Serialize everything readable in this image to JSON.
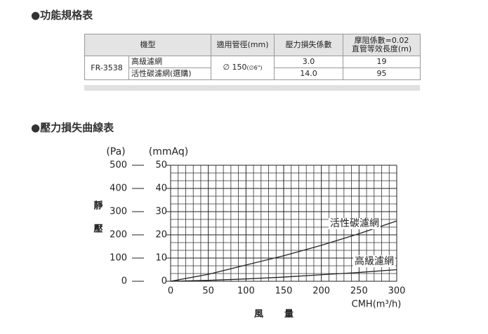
{
  "section1_title": "●功能規格表",
  "table": {
    "header": [
      "機型",
      "適用管徑(mm)",
      "壓力損失係數",
      [
        "摩阻係數=0.02",
        "直管等效長度(m)"
      ]
    ],
    "model": "FR-3538",
    "diameter": "∅ 150",
    "diameter_note": "(∅6\")",
    "rows": [
      {
        "filter": "高級濾網",
        "loss_coefficient": "3.0",
        "equivalent_length": 19
      },
      {
        "filter": "活性碳濾網(選購)",
        "loss_coefficient": "14.0",
        "equivalent_length": 95
      }
    ]
  },
  "section2_title": "●壓力損失曲線表",
  "chart_data": {
    "type": "line",
    "y_label": "靜壓",
    "x_label": "風量",
    "x_unit": "CMH(m³/h)",
    "y_unit": "(mmAq)",
    "y2_unit": "(Pa)",
    "x": [
      0,
      50,
      100,
      150,
      200,
      250,
      300
    ],
    "series": [
      {
        "name": "活性碳濾網",
        "color": "#222222",
        "values": [
          0,
          3,
          7,
          11,
          15.5,
          20.5,
          26
        ]
      },
      {
        "name": "高級濾網",
        "color": "#222222",
        "values": [
          0,
          0.4,
          1,
          1.8,
          2.8,
          3.8,
          5
        ]
      }
    ],
    "xlim": [
      0,
      300
    ],
    "xticks": [
      0,
      50,
      100,
      150,
      200,
      250,
      300
    ],
    "ylim": [
      0,
      50
    ],
    "yticks": [
      0,
      10,
      20,
      30,
      40,
      50
    ],
    "y2lim": [
      0,
      500
    ],
    "y2ticks": [
      0,
      100,
      200,
      300,
      400,
      500
    ],
    "grid": true,
    "x_minor_grid": [
      10,
      20,
      30,
      40,
      60,
      70,
      80,
      90,
      110,
      120,
      130,
      140,
      160,
      170,
      180,
      190,
      210,
      220,
      230,
      240,
      260,
      270,
      280,
      290
    ],
    "y_minor_grid": [
      3.33,
      6.67,
      13.33,
      16.67,
      23.33,
      26.67,
      33.33,
      36.67,
      43.33,
      46.67
    ]
  }
}
